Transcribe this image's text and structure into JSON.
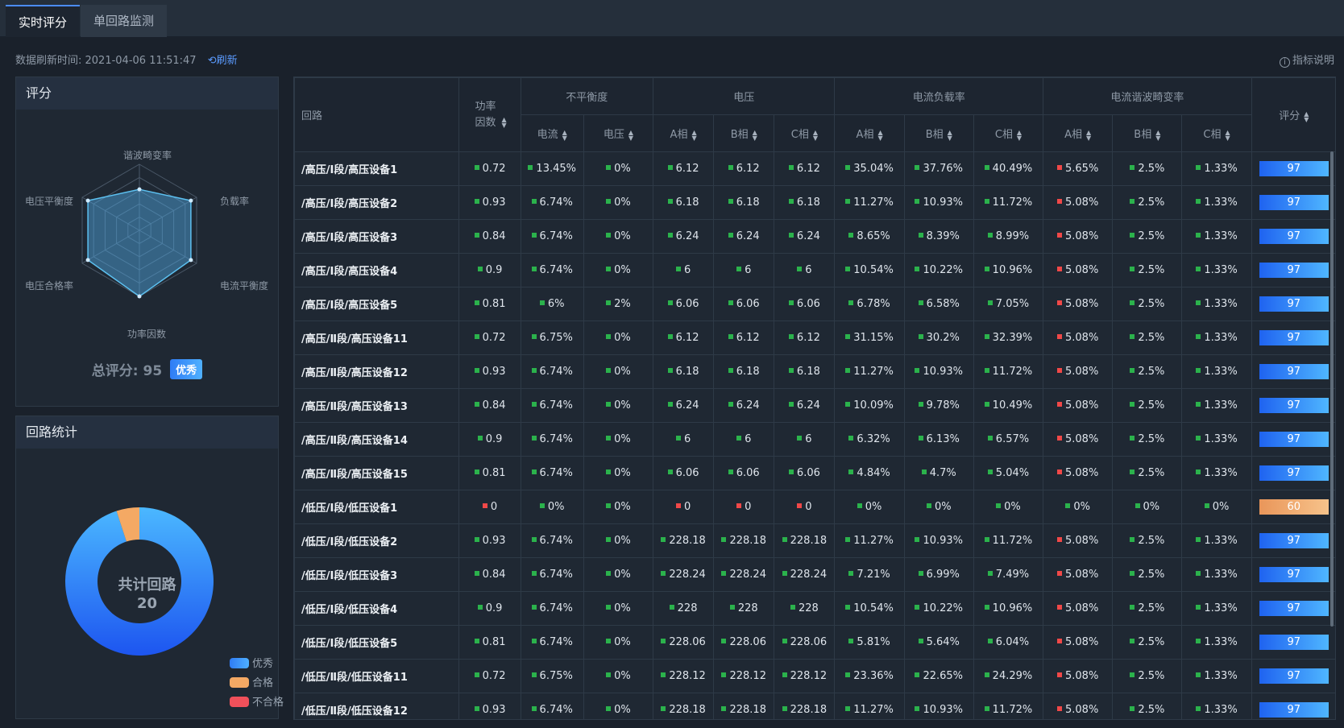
{
  "tabs": [
    {
      "label": "实时评分"
    },
    {
      "label": "单回路监测"
    }
  ],
  "refresh": {
    "label": "数据刷新时间: 2021-04-06 11:51:47",
    "button": "刷新"
  },
  "help": "指标说明",
  "score_panel": {
    "title": "评分",
    "radar_labels": [
      "谐波畸变率",
      "负载率",
      "电流平衡度",
      "功率因数",
      "电压合格率",
      "电压平衡度"
    ],
    "radar_values": [
      0.62,
      0.9,
      0.9,
      1.0,
      0.9,
      0.9
    ],
    "total_label": "总评分: 95",
    "badge": "优秀"
  },
  "stats_panel": {
    "title": "回路统计",
    "center_title": "共计回路",
    "center_value": "20",
    "legend": [
      {
        "label": "优秀",
        "color": "#3b8bff"
      },
      {
        "label": "合格",
        "color": "#f4a964"
      },
      {
        "label": "不合格",
        "color": "#f0505a"
      }
    ],
    "counts": [
      19,
      1,
      0
    ]
  },
  "table": {
    "head_row1": {
      "loop": "回路",
      "pf": "功率因数",
      "unbalance": "不平衡度",
      "voltage": "电压",
      "load": "电流负载率",
      "harmonic": "电流谐波畸变率",
      "score": "评分"
    },
    "head_row2": [
      "电流",
      "电压",
      "A相",
      "B相",
      "C相",
      "A相",
      "B相",
      "C相",
      "A相",
      "B相",
      "C相"
    ],
    "rows": [
      {
        "name": "/高压/Ⅰ段/高压设备1",
        "cells": [
          "0.72",
          "13.45%",
          "0%",
          "6.12",
          "6.12",
          "6.12",
          "35.04%",
          "37.76%",
          "40.49%",
          "5.65%",
          "2.5%",
          "1.33%"
        ],
        "status": [
          "g",
          "g",
          "g",
          "g",
          "g",
          "g",
          "g",
          "g",
          "g",
          "r",
          "g",
          "g"
        ],
        "score": "97",
        "grade": "good"
      },
      {
        "name": "/高压/Ⅰ段/高压设备2",
        "cells": [
          "0.93",
          "6.74%",
          "0%",
          "6.18",
          "6.18",
          "6.18",
          "11.27%",
          "10.93%",
          "11.72%",
          "5.08%",
          "2.5%",
          "1.33%"
        ],
        "status": [
          "g",
          "g",
          "g",
          "g",
          "g",
          "g",
          "g",
          "g",
          "g",
          "r",
          "g",
          "g"
        ],
        "score": "97",
        "grade": "good"
      },
      {
        "name": "/高压/Ⅰ段/高压设备3",
        "cells": [
          "0.84",
          "6.74%",
          "0%",
          "6.24",
          "6.24",
          "6.24",
          "8.65%",
          "8.39%",
          "8.99%",
          "5.08%",
          "2.5%",
          "1.33%"
        ],
        "status": [
          "g",
          "g",
          "g",
          "g",
          "g",
          "g",
          "g",
          "g",
          "g",
          "r",
          "g",
          "g"
        ],
        "score": "97",
        "grade": "good"
      },
      {
        "name": "/高压/Ⅰ段/高压设备4",
        "cells": [
          "0.9",
          "6.74%",
          "0%",
          "6",
          "6",
          "6",
          "10.54%",
          "10.22%",
          "10.96%",
          "5.08%",
          "2.5%",
          "1.33%"
        ],
        "status": [
          "g",
          "g",
          "g",
          "g",
          "g",
          "g",
          "g",
          "g",
          "g",
          "r",
          "g",
          "g"
        ],
        "score": "97",
        "grade": "good"
      },
      {
        "name": "/高压/Ⅰ段/高压设备5",
        "cells": [
          "0.81",
          "6%",
          "2%",
          "6.06",
          "6.06",
          "6.06",
          "6.78%",
          "6.58%",
          "7.05%",
          "5.08%",
          "2.5%",
          "1.33%"
        ],
        "status": [
          "g",
          "g",
          "g",
          "g",
          "g",
          "g",
          "g",
          "g",
          "g",
          "r",
          "g",
          "g"
        ],
        "score": "97",
        "grade": "good"
      },
      {
        "name": "/高压/Ⅱ段/高压设备11",
        "cells": [
          "0.72",
          "6.75%",
          "0%",
          "6.12",
          "6.12",
          "6.12",
          "31.15%",
          "30.2%",
          "32.39%",
          "5.08%",
          "2.5%",
          "1.33%"
        ],
        "status": [
          "g",
          "g",
          "g",
          "g",
          "g",
          "g",
          "g",
          "g",
          "g",
          "r",
          "g",
          "g"
        ],
        "score": "97",
        "grade": "good"
      },
      {
        "name": "/高压/Ⅱ段/高压设备12",
        "cells": [
          "0.93",
          "6.74%",
          "0%",
          "6.18",
          "6.18",
          "6.18",
          "11.27%",
          "10.93%",
          "11.72%",
          "5.08%",
          "2.5%",
          "1.33%"
        ],
        "status": [
          "g",
          "g",
          "g",
          "g",
          "g",
          "g",
          "g",
          "g",
          "g",
          "r",
          "g",
          "g"
        ],
        "score": "97",
        "grade": "good"
      },
      {
        "name": "/高压/Ⅱ段/高压设备13",
        "cells": [
          "0.84",
          "6.74%",
          "0%",
          "6.24",
          "6.24",
          "6.24",
          "10.09%",
          "9.78%",
          "10.49%",
          "5.08%",
          "2.5%",
          "1.33%"
        ],
        "status": [
          "g",
          "g",
          "g",
          "g",
          "g",
          "g",
          "g",
          "g",
          "g",
          "r",
          "g",
          "g"
        ],
        "score": "97",
        "grade": "good"
      },
      {
        "name": "/高压/Ⅱ段/高压设备14",
        "cells": [
          "0.9",
          "6.74%",
          "0%",
          "6",
          "6",
          "6",
          "6.32%",
          "6.13%",
          "6.57%",
          "5.08%",
          "2.5%",
          "1.33%"
        ],
        "status": [
          "g",
          "g",
          "g",
          "g",
          "g",
          "g",
          "g",
          "g",
          "g",
          "r",
          "g",
          "g"
        ],
        "score": "97",
        "grade": "good"
      },
      {
        "name": "/高压/Ⅱ段/高压设备15",
        "cells": [
          "0.81",
          "6.74%",
          "0%",
          "6.06",
          "6.06",
          "6.06",
          "4.84%",
          "4.7%",
          "5.04%",
          "5.08%",
          "2.5%",
          "1.33%"
        ],
        "status": [
          "g",
          "g",
          "g",
          "g",
          "g",
          "g",
          "g",
          "g",
          "g",
          "r",
          "g",
          "g"
        ],
        "score": "97",
        "grade": "good"
      },
      {
        "name": "/低压/Ⅰ段/低压设备1",
        "cells": [
          "0",
          "0%",
          "0%",
          "0",
          "0",
          "0",
          "0%",
          "0%",
          "0%",
          "0%",
          "0%",
          "0%"
        ],
        "status": [
          "r",
          "g",
          "g",
          "r",
          "r",
          "r",
          "g",
          "g",
          "g",
          "g",
          "g",
          "g"
        ],
        "score": "60",
        "grade": "ok"
      },
      {
        "name": "/低压/Ⅰ段/低压设备2",
        "cells": [
          "0.93",
          "6.74%",
          "0%",
          "228.18",
          "228.18",
          "228.18",
          "11.27%",
          "10.93%",
          "11.72%",
          "5.08%",
          "2.5%",
          "1.33%"
        ],
        "status": [
          "g",
          "g",
          "g",
          "g",
          "g",
          "g",
          "g",
          "g",
          "g",
          "r",
          "g",
          "g"
        ],
        "score": "97",
        "grade": "good"
      },
      {
        "name": "/低压/Ⅰ段/低压设备3",
        "cells": [
          "0.84",
          "6.74%",
          "0%",
          "228.24",
          "228.24",
          "228.24",
          "7.21%",
          "6.99%",
          "7.49%",
          "5.08%",
          "2.5%",
          "1.33%"
        ],
        "status": [
          "g",
          "g",
          "g",
          "g",
          "g",
          "g",
          "g",
          "g",
          "g",
          "r",
          "g",
          "g"
        ],
        "score": "97",
        "grade": "good"
      },
      {
        "name": "/低压/Ⅰ段/低压设备4",
        "cells": [
          "0.9",
          "6.74%",
          "0%",
          "228",
          "228",
          "228",
          "10.54%",
          "10.22%",
          "10.96%",
          "5.08%",
          "2.5%",
          "1.33%"
        ],
        "status": [
          "g",
          "g",
          "g",
          "g",
          "g",
          "g",
          "g",
          "g",
          "g",
          "r",
          "g",
          "g"
        ],
        "score": "97",
        "grade": "good"
      },
      {
        "name": "/低压/Ⅰ段/低压设备5",
        "cells": [
          "0.81",
          "6.74%",
          "0%",
          "228.06",
          "228.06",
          "228.06",
          "5.81%",
          "5.64%",
          "6.04%",
          "5.08%",
          "2.5%",
          "1.33%"
        ],
        "status": [
          "g",
          "g",
          "g",
          "g",
          "g",
          "g",
          "g",
          "g",
          "g",
          "r",
          "g",
          "g"
        ],
        "score": "97",
        "grade": "good"
      },
      {
        "name": "/低压/Ⅱ段/低压设备11",
        "cells": [
          "0.72",
          "6.75%",
          "0%",
          "228.12",
          "228.12",
          "228.12",
          "23.36%",
          "22.65%",
          "24.29%",
          "5.08%",
          "2.5%",
          "1.33%"
        ],
        "status": [
          "g",
          "g",
          "g",
          "g",
          "g",
          "g",
          "g",
          "g",
          "g",
          "r",
          "g",
          "g"
        ],
        "score": "97",
        "grade": "good"
      },
      {
        "name": "/低压/Ⅱ段/低压设备12",
        "cells": [
          "0.93",
          "6.74%",
          "0%",
          "228.18",
          "228.18",
          "228.18",
          "11.27%",
          "10.93%",
          "11.72%",
          "5.08%",
          "2.5%",
          "1.33%"
        ],
        "status": [
          "g",
          "g",
          "g",
          "g",
          "g",
          "g",
          "g",
          "g",
          "g",
          "r",
          "g",
          "g"
        ],
        "score": "97",
        "grade": "good"
      }
    ]
  }
}
